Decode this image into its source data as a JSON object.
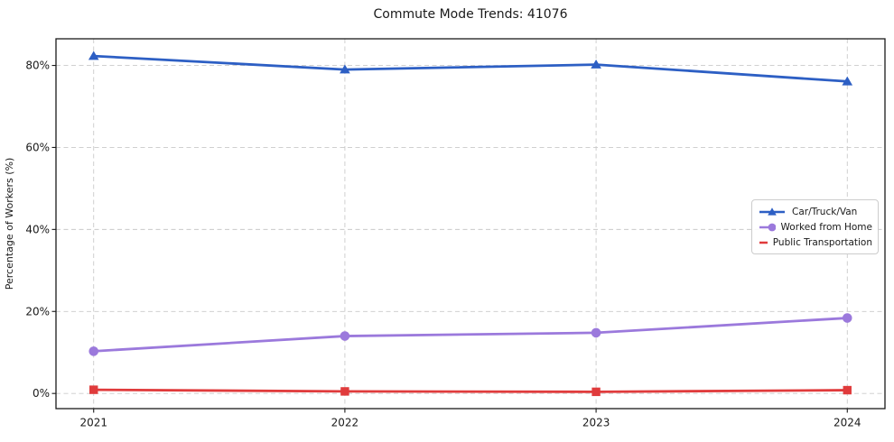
{
  "chart_data": {
    "type": "line",
    "title": "Commute Mode Trends: 41076",
    "ylabel": "Percentage of Workers (%)",
    "xlabel": "",
    "x": [
      2021,
      2022,
      2023,
      2024
    ],
    "x_tick_labels": [
      "2021",
      "2022",
      "2023",
      "2024"
    ],
    "y_ticks": [
      0,
      20,
      40,
      60,
      80
    ],
    "y_tick_labels": [
      "0%",
      "20%",
      "40%",
      "60%",
      "80%"
    ],
    "xlim": [
      2020.85,
      2024.15
    ],
    "ylim": [
      -3.7,
      86.5
    ],
    "grid": true,
    "grid_style": "dashed",
    "legend_position": "center-right",
    "series": [
      {
        "name": "Car/Truck/Van",
        "marker": "triangle",
        "color": "#2d5fc4",
        "values": [
          82.3,
          79.0,
          80.2,
          76.1
        ]
      },
      {
        "name": "Worked from Home",
        "marker": "circle",
        "color": "#9b79dc",
        "values": [
          10.3,
          14.0,
          14.8,
          18.4
        ]
      },
      {
        "name": "Public Transportation",
        "marker": "square",
        "color": "#e03b3c",
        "values": [
          0.9,
          0.5,
          0.4,
          0.8
        ]
      }
    ],
    "colors": {
      "grid": "#c9c9c9",
      "spine": "#1a1a1a",
      "text": "#1a1a1a",
      "plot_background": "#ffffff"
    }
  }
}
